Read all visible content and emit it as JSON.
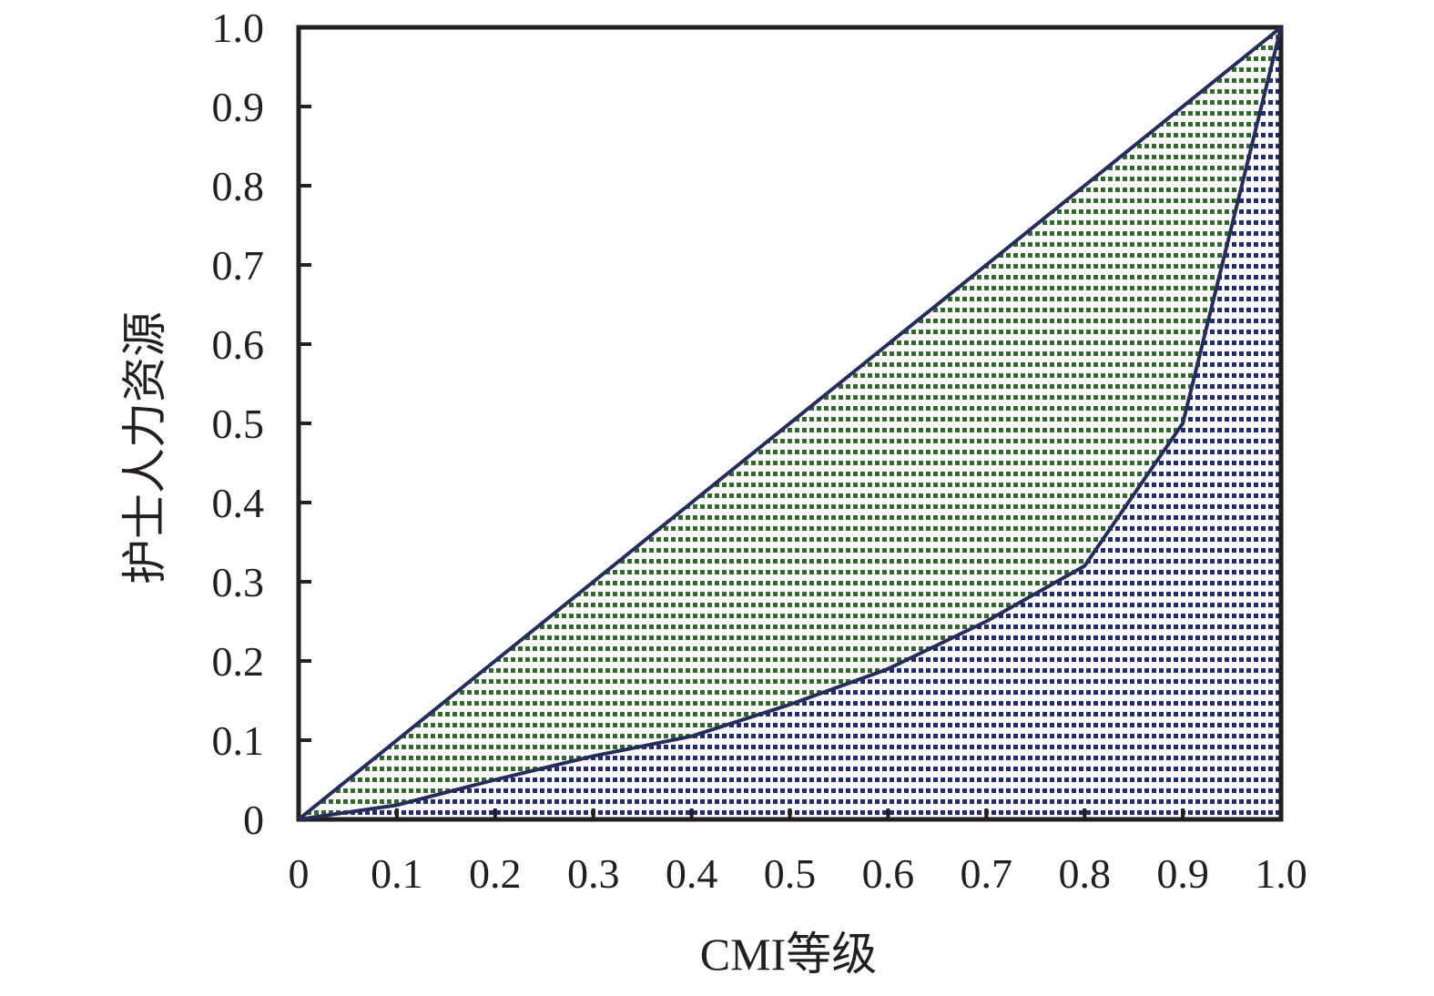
{
  "chart_data": {
    "type": "area",
    "title": "",
    "xlabel": "CMI等级",
    "ylabel": "护士人力资源",
    "xlim": [
      0,
      1
    ],
    "ylim": [
      0,
      1
    ],
    "x_ticks": [
      "0",
      "0.1",
      "0.2",
      "0.3",
      "0.4",
      "0.5",
      "0.6",
      "0.7",
      "0.8",
      "0.9",
      "1.0"
    ],
    "y_ticks": [
      "0",
      "0.1",
      "0.2",
      "0.3",
      "0.4",
      "0.5",
      "0.6",
      "0.7",
      "0.8",
      "0.9",
      "1.0"
    ],
    "grid": false,
    "legend": "none",
    "series": [
      {
        "x": [
          0,
          1
        ],
        "y": [
          0,
          1
        ],
        "color": "#262d5a"
      },
      {
        "x": [
          0,
          0.1,
          0.2,
          0.3,
          0.4,
          0.5,
          0.6,
          0.7,
          0.8,
          0.9,
          1.0
        ],
        "y": [
          0,
          0.018,
          0.05,
          0.08,
          0.105,
          0.145,
          0.19,
          0.25,
          0.32,
          0.5,
          1.0
        ],
        "color": "#262d5a"
      }
    ],
    "fills": {
      "between_equality_and_curve": "#2e6b2a",
      "under_curve": "#1f2a78"
    },
    "frame_color": "#231f20"
  }
}
